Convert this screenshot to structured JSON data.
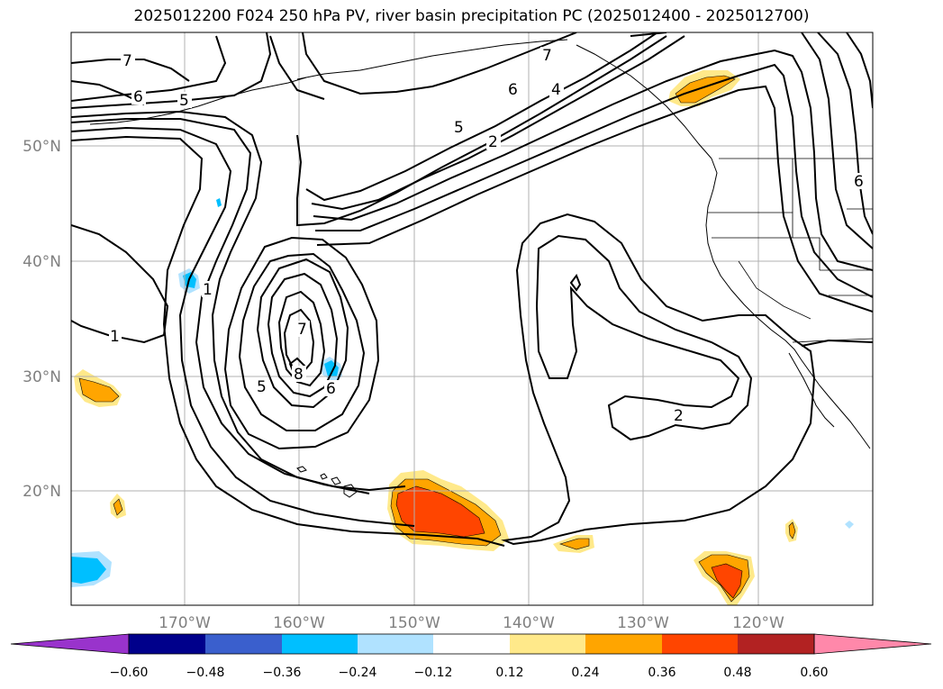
{
  "title": "2025012200 F024 250 hPa PV, river basin precipitation PC (2025012400 - 2025012700)",
  "latitude_labels": [
    "50°N",
    "40°N",
    "30°N",
    "20°N"
  ],
  "longitude_labels": [
    "170°W",
    "160°W",
    "150°W",
    "140°W",
    "130°W",
    "120°W"
  ],
  "contour_labels": [
    "7",
    "6",
    "5",
    "7",
    "6",
    "4",
    "5",
    "2",
    "1",
    "1",
    "7",
    "8",
    "5",
    "6",
    "2",
    "6"
  ],
  "colorbar": {
    "colors": [
      "#9933cc",
      "#00008b",
      "#3a5fcd",
      "#00bfff",
      "#b0e2ff",
      "#ffffff",
      "#ffe98a",
      "#ffa500",
      "#ff4500",
      "#b22222",
      "#ff88aa"
    ],
    "tick_labels": [
      "−0.60",
      "−0.48",
      "−0.36",
      "−0.24",
      "−0.12",
      "0.12",
      "0.24",
      "0.36",
      "0.48",
      "0.60"
    ]
  },
  "shading_colors": {
    "light_blue": "#b0e2ff",
    "blue": "#00bfff",
    "yellow": "#ffe98a",
    "orange": "#ffa500",
    "red_orange": "#ff4500"
  }
}
